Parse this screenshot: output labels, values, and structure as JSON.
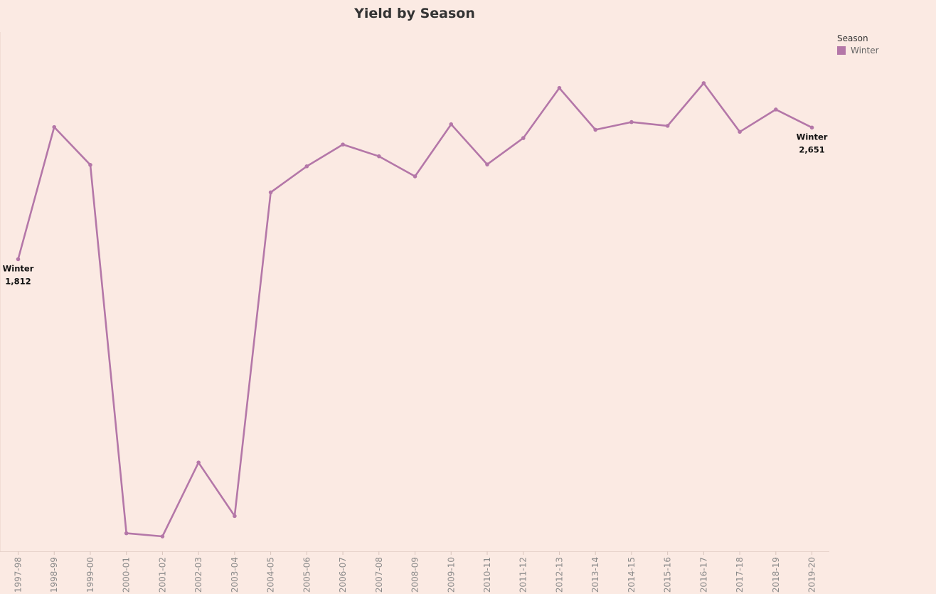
{
  "chart_data": {
    "type": "line",
    "title": "Yield by Season",
    "xlabel": "",
    "ylabel": "",
    "x": [
      "1997-98",
      "1998-99",
      "1999-00",
      "2000-01",
      "2001-02",
      "2002-03",
      "2003-04",
      "2004-05",
      "2005-06",
      "2006-07",
      "2007-08",
      "2008-09",
      "2009-10",
      "2010-11",
      "2011-12",
      "2012-13",
      "2013-14",
      "2014-15",
      "2015-16",
      "2016-17",
      "2017-18",
      "2018-19",
      "2019-20"
    ],
    "series": [
      {
        "name": "Winter",
        "color": "#b477a8",
        "values": [
          1812,
          2654,
          2413,
          65,
          45,
          516,
          175,
          2238,
          2404,
          2543,
          2468,
          2340,
          2672,
          2416,
          2584,
          2903,
          2637,
          2686,
          2662,
          2934,
          2624,
          2766,
          2651
        ]
      }
    ],
    "ylim": [
      -50,
      3260
    ],
    "grid": false,
    "legend": {
      "title": "Season",
      "position": "top-right",
      "entries": [
        "Winter"
      ]
    },
    "annotations": [
      {
        "x": "1997-98",
        "label": "Winter",
        "value": "1,812"
      },
      {
        "x": "2019-20",
        "label": "Winter",
        "value": "2,651"
      }
    ]
  }
}
